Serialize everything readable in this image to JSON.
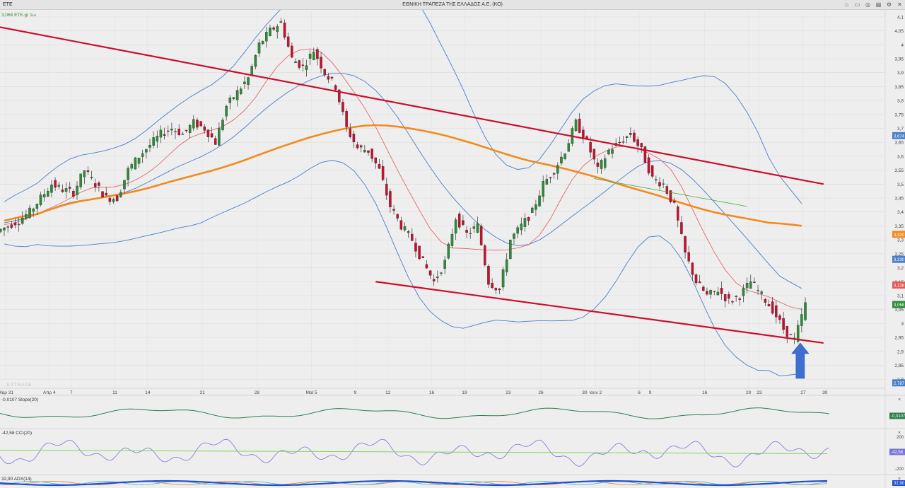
{
  "window": {
    "symbol_tab": "ETE",
    "title": "ΕΘΝΙΚΗ ΤΡΑΠΕΖΑ ΤΗΣ ΕΛΛΑΔΟΣ Α.Ε. (ΚΟ)",
    "controls": [
      "lock-icon",
      "window-icon",
      "zoom-icon",
      "layout-icon",
      "settings-icon",
      "close-icon"
    ]
  },
  "colors": {
    "candle_up": "#2e8b3a",
    "candle_down": "#c8102e",
    "bollinger": "#4a7fc7",
    "ma_short": "#e35a5a",
    "ma_long": "#f28a1e",
    "channel": "#c8102e",
    "slope": "#2e7d4f",
    "cci": "#7b74d9",
    "cci_signal": "#7fd65a",
    "adx": "#1f4fd1",
    "di_plus": "#e07b3a",
    "di_minus": "#39b4c8"
  },
  "chart_data": [
    {
      "type": "candlestick",
      "legend": "3,068 ETE.gr 1ω",
      "watermark": "EXTRADE",
      "ylim": [
        2.77,
        4.12
      ],
      "y_ticks": [
        "4,1",
        "4,05",
        "4",
        "3,95",
        "3,9",
        "3,85",
        "3,8",
        "3,75",
        "3,7",
        "3,65",
        "3,6",
        "3,55",
        "3,5",
        "3,45",
        "3,4",
        "3,35",
        "3,3",
        "3,25",
        "3,2",
        "3,15",
        "3,1",
        "3,05",
        "3",
        "2,95",
        "2,9",
        "2,85",
        "2,8"
      ],
      "x_ticks": [
        {
          "label": "Μαρ 31",
          "x": 0
        },
        {
          "label": "Απρ 4",
          "x": 4
        },
        {
          "label": "7",
          "x": 6
        },
        {
          "label": "11",
          "x": 10
        },
        {
          "label": "14",
          "x": 13
        },
        {
          "label": "21",
          "x": 18
        },
        {
          "label": "28",
          "x": 23
        },
        {
          "label": "Μαϊ 5",
          "x": 28
        },
        {
          "label": "9",
          "x": 32
        },
        {
          "label": "12",
          "x": 35
        },
        {
          "label": "16",
          "x": 39
        },
        {
          "label": "19",
          "x": 42
        },
        {
          "label": "23",
          "x": 46
        },
        {
          "label": "26",
          "x": 49
        },
        {
          "label": "30",
          "x": 53
        },
        {
          "label": "Ιουν 2",
          "x": 54
        },
        {
          "label": "6",
          "x": 58
        },
        {
          "label": "9",
          "x": 59
        },
        {
          "label": "16",
          "x": 64
        },
        {
          "label": "20",
          "x": 68
        },
        {
          "label": "23",
          "x": 69
        },
        {
          "label": "27",
          "x": 73
        },
        {
          "label": "30",
          "x": 75
        }
      ],
      "closes": [
        3.35,
        3.37,
        3.4,
        3.45,
        3.5,
        3.48,
        3.47,
        3.55,
        3.5,
        3.45,
        3.45,
        3.55,
        3.6,
        3.64,
        3.68,
        3.7,
        3.68,
        3.72,
        3.7,
        3.65,
        3.78,
        3.83,
        3.88,
        4.0,
        4.05,
        4.08,
        3.95,
        3.92,
        3.98,
        3.9,
        3.85,
        3.7,
        3.63,
        3.62,
        3.55,
        3.42,
        3.35,
        3.3,
        3.22,
        3.15,
        3.22,
        3.38,
        3.32,
        3.35,
        3.15,
        3.12,
        3.3,
        3.35,
        3.4,
        3.5,
        3.55,
        3.62,
        3.72,
        3.65,
        3.55,
        3.62,
        3.65,
        3.68,
        3.62,
        3.52,
        3.5,
        3.42,
        3.25,
        3.15,
        3.1,
        3.12,
        3.08,
        3.1,
        3.15,
        3.1,
        3.05,
        2.98,
        2.94,
        3.068
      ],
      "series_labels": [
        {
          "name": "BB upper",
          "value": "3,674"
        },
        {
          "name": "MA long",
          "value": "3,320"
        },
        {
          "name": "BB mid",
          "value": "3,230"
        },
        {
          "name": "MA short",
          "value": "3,138"
        },
        {
          "name": "Last",
          "value": "3,068"
        },
        {
          "name": "BB lower",
          "value": "2,787"
        }
      ],
      "trendlines": [
        {
          "name": "upper channel",
          "from": [
            -6,
            4.105
          ],
          "to": [
            75,
            3.5
          ]
        },
        {
          "name": "lower channel",
          "from": [
            34,
            3.15
          ],
          "to": [
            75,
            2.93
          ]
        },
        {
          "name": "support",
          "from": [
            54,
            3.52
          ],
          "to": [
            68,
            3.42
          ]
        }
      ]
    },
    {
      "type": "line",
      "legend": "-0,0107 Slope(20)",
      "value_label": "-0,0107"
    },
    {
      "type": "line",
      "legend": "-42,58 CCI(20)",
      "value_label": "-42,58",
      "y_ticks": [
        "200",
        "0",
        "-200"
      ]
    },
    {
      "type": "line",
      "legend": "32,90 ADX(14)",
      "value_label": "32,90"
    }
  ]
}
